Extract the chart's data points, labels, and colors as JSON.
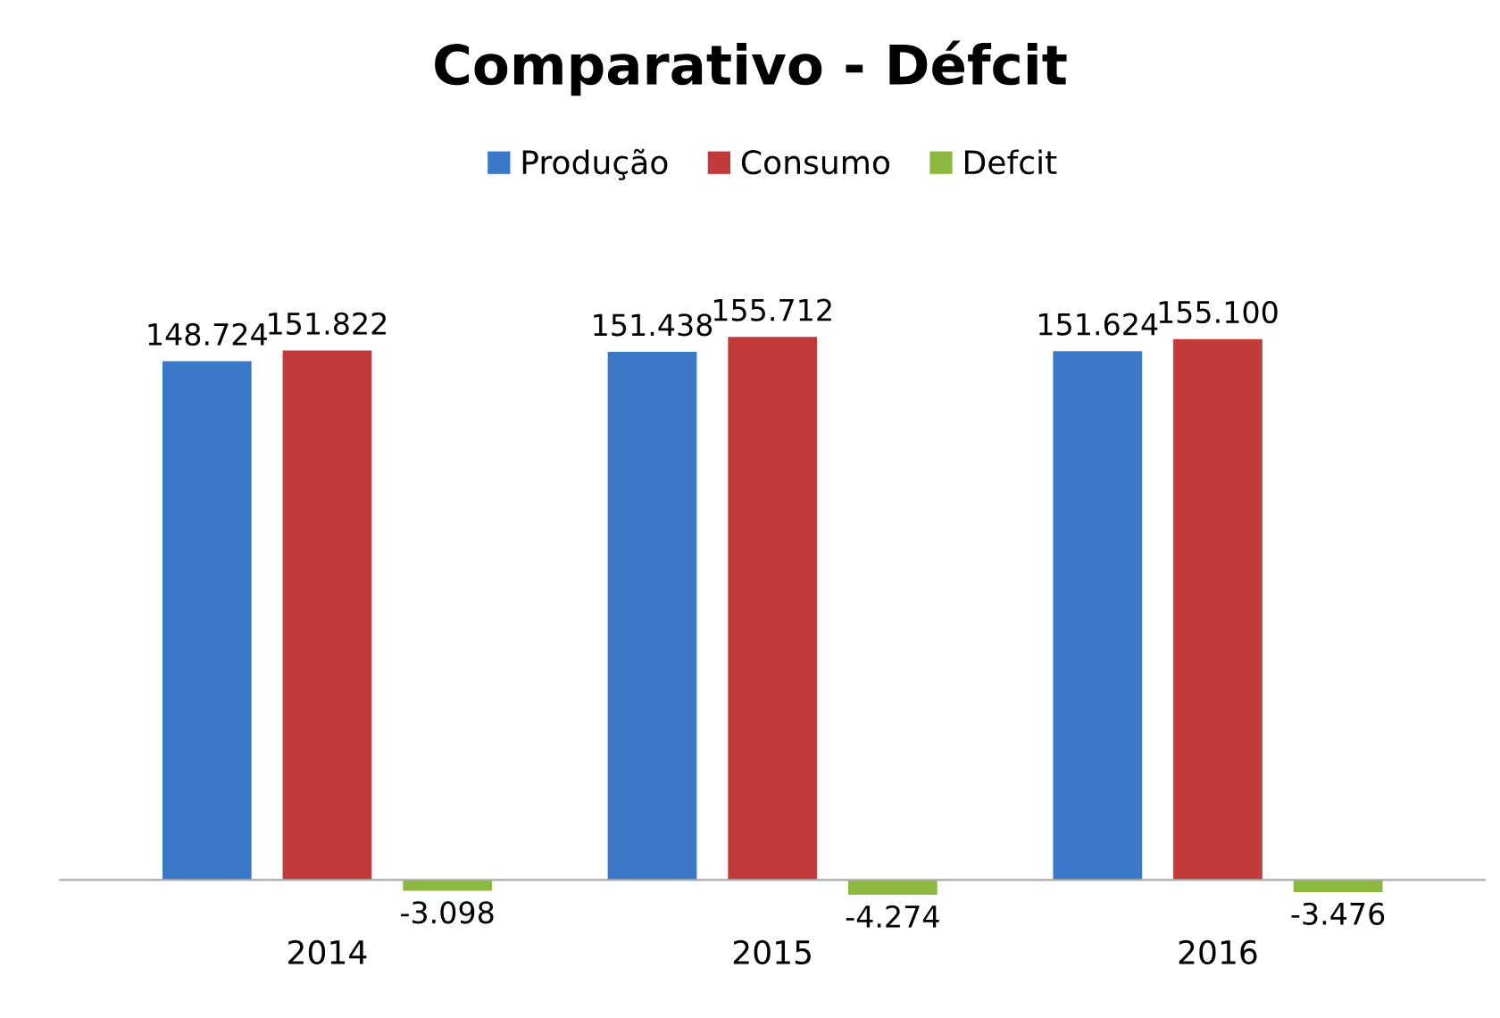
{
  "chart_data": {
    "type": "bar",
    "title": "Comparativo - Défcit",
    "categories": [
      "2014",
      "2015",
      "2016"
    ],
    "series": [
      {
        "name": "Produção",
        "color": "#3b78c8",
        "values": [
          148.724,
          151.438,
          151.624
        ],
        "value_labels": [
          "148.724",
          "151.438",
          "151.624"
        ]
      },
      {
        "name": "Consumo",
        "color": "#c23a3a",
        "values": [
          151.822,
          155.712,
          155.1
        ],
        "value_labels": [
          "151.822",
          "155.712",
          "155.100"
        ]
      },
      {
        "name": "Defcit",
        "color": "#8cb83f",
        "values": [
          -3.098,
          -4.274,
          -3.476
        ],
        "value_labels": [
          "-3.098",
          "-4.274",
          "-3.476"
        ]
      }
    ],
    "legend": "top",
    "grid": false,
    "tick_labels": "x"
  }
}
